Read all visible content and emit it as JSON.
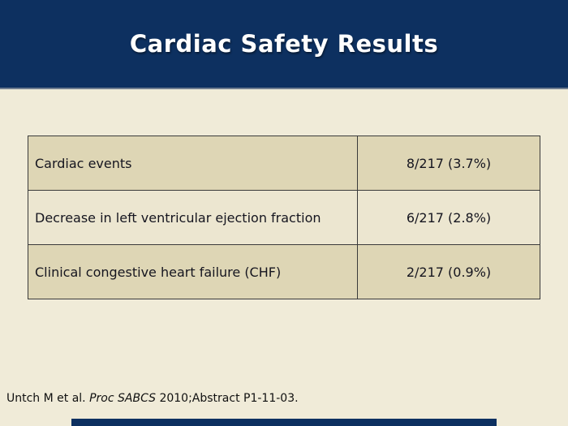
{
  "slide": {
    "title": "Cardiac Safety Results"
  },
  "colors": {
    "navy": "#0d3060",
    "cream": "#f0ebd8",
    "row_tan": "#ded6b5",
    "row_light": "#ece6d0",
    "table_border": "#3a3a3a",
    "title_text": "#ffffff",
    "body_text": "#15151f"
  },
  "table": {
    "rows": [
      {
        "label": "Cardiac events",
        "value": "8/217 (3.7%)"
      },
      {
        "label": "Decrease in left ventricular ejection fraction",
        "value": "6/217 (2.8%)"
      },
      {
        "label": "Clinical congestive heart failure (CHF)",
        "value": "2/217 (0.9%)"
      }
    ]
  },
  "citation": {
    "prefix": "Untch M et al. ",
    "source": "Proc SABCS",
    "suffix": " 2010;Abstract P1-11-03."
  }
}
